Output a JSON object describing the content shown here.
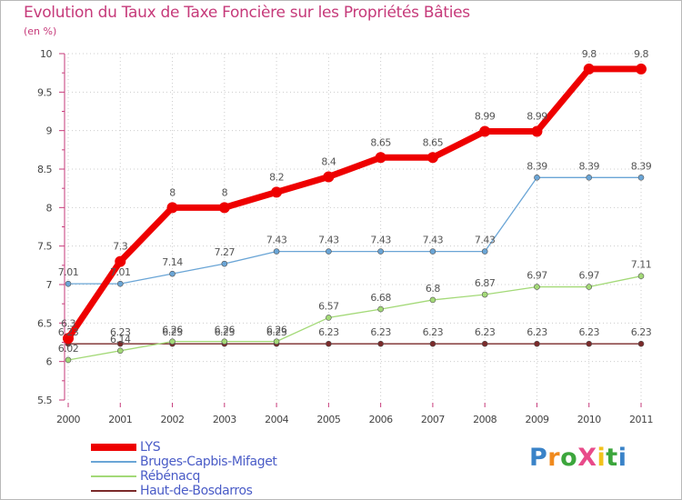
{
  "title": "Evolution du Taux de Taxe Foncière sur les Propriétés Bâties",
  "subtitle": "(en %)",
  "logo": {
    "text": "ProXiti",
    "letters": [
      "P",
      "r",
      "o",
      "X",
      "i",
      "t",
      "i"
    ],
    "colors": [
      "#3a83c8",
      "#f08a1e",
      "#3ca63c",
      "#e84b8a",
      "#f2c21b",
      "#3ca63c",
      "#3a83c8"
    ]
  },
  "chart_data": {
    "type": "line",
    "title": "Evolution du Taux de Taxe Foncière sur les Propriétés Bâties",
    "ylabel": "(en %)",
    "xlabel": "",
    "ylim": [
      5.5,
      10
    ],
    "yticks": [
      "5.5",
      "6",
      "6.5",
      "7",
      "7.5",
      "8",
      "8.5",
      "9",
      "9.5",
      "10"
    ],
    "categories": [
      "2000",
      "2001",
      "2002",
      "2003",
      "2004",
      "2005",
      "2006",
      "2007",
      "2008",
      "2009",
      "2010",
      "2011"
    ],
    "legend_position": "bottom-left",
    "series": [
      {
        "name": "LYS",
        "color": "#ee0000",
        "values": [
          6.3,
          7.3,
          8,
          8,
          8.2,
          8.4,
          8.65,
          8.65,
          8.99,
          8.99,
          9.8,
          9.8
        ],
        "labels": [
          "6.3",
          "7.3",
          "8",
          "8",
          "8.2",
          "8.4",
          "8.65",
          "8.65",
          "8.99",
          "8.99",
          "9.8",
          "9.8"
        ]
      },
      {
        "name": "Bruges-Capbis-Mifaget",
        "color": "#6aa5d6",
        "values": [
          7.01,
          7.01,
          7.14,
          7.27,
          7.43,
          7.43,
          7.43,
          7.43,
          7.43,
          8.39,
          8.39,
          8.39
        ],
        "labels": [
          "7.01",
          "7.01",
          "7.14",
          "7.27",
          "7.43",
          "7.43",
          "7.43",
          "7.43",
          "7.43",
          "8.39",
          "8.39",
          "8.39"
        ]
      },
      {
        "name": "Rébénacq",
        "color": "#a3d977",
        "values": [
          6.02,
          6.14,
          6.26,
          6.26,
          6.26,
          6.57,
          6.68,
          6.8,
          6.87,
          6.97,
          6.97,
          7.11
        ],
        "labels": [
          "6.02",
          "6.14",
          "6.26",
          "6.26",
          "6.26",
          "6.57",
          "6.68",
          "6.8",
          "6.87",
          "6.97",
          "6.97",
          "7.11"
        ]
      },
      {
        "name": "Haut-de-Bosdarros",
        "color": "#7a2a2a",
        "values": [
          6.23,
          6.23,
          6.23,
          6.23,
          6.23,
          6.23,
          6.23,
          6.23,
          6.23,
          6.23,
          6.23,
          6.23
        ],
        "labels": [
          "6.23",
          "6.23",
          "6.23",
          "6.23",
          "6.23",
          "6.23",
          "6.23",
          "6.23",
          "6.23",
          "6.23",
          "6.23",
          "6.23"
        ]
      }
    ]
  }
}
